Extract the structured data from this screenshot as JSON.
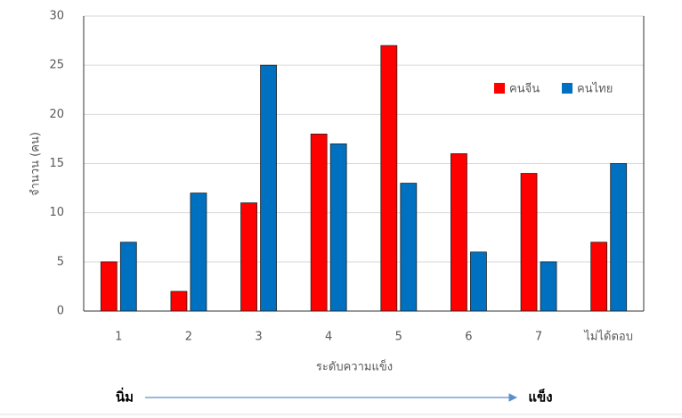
{
  "chart_data": {
    "type": "bar",
    "categories": [
      "1",
      "2",
      "3",
      "4",
      "5",
      "6",
      "7",
      "ไม่ได้ตอบ"
    ],
    "series": [
      {
        "name": "คนจีน",
        "color": "#ff0000",
        "values": [
          5,
          2,
          11,
          18,
          27,
          16,
          14,
          7
        ]
      },
      {
        "name": "คนไทย",
        "color": "#0070c0",
        "values": [
          7,
          12,
          25,
          17,
          13,
          6,
          5,
          15
        ]
      }
    ],
    "ylim": [
      0,
      30
    ],
    "yticks": [
      0,
      5,
      10,
      15,
      20,
      25,
      30
    ],
    "grid": true,
    "y_label": "จำนวน (คน)",
    "x_label": "ระดับความแข็ง",
    "legend": "upper right",
    "annotations": {
      "start": "นิ่ม",
      "end": "แข็ง"
    }
  }
}
